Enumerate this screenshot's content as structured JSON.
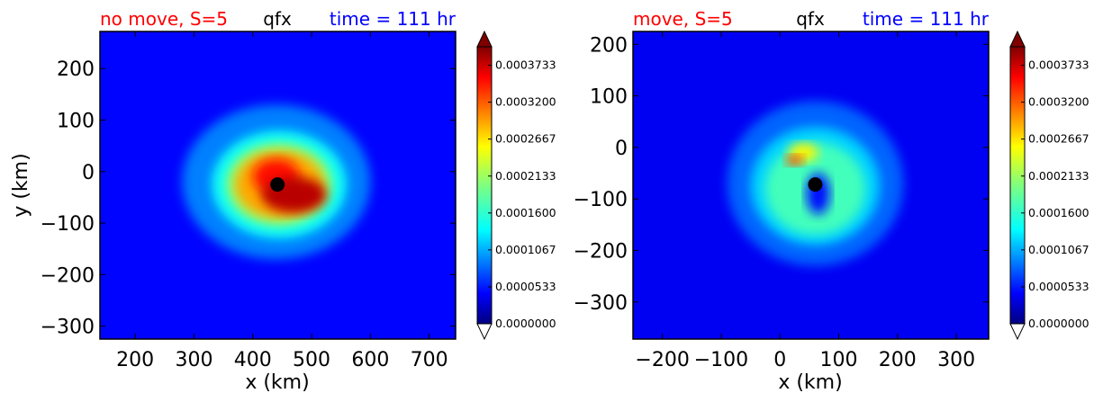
{
  "chart_data": [
    {
      "type": "heatmap",
      "title_left": "no move, S=5",
      "title_center": "qfx",
      "title_right": "time = 111 hr",
      "title_colors": {
        "left": "#ff0000",
        "center": "#000000",
        "right": "#0000ff"
      },
      "xlabel": "x (km)",
      "ylabel": "y (km)",
      "xlim": [
        140,
        745
      ],
      "ylim": [
        -325,
        272
      ],
      "x_ticks": [
        200,
        300,
        400,
        500,
        600,
        700
      ],
      "x_tick_labels": [
        "200",
        "300",
        "400",
        "500",
        "600",
        "700"
      ],
      "y_ticks": [
        200,
        100,
        0,
        -100,
        -200,
        -300
      ],
      "y_tick_labels": [
        "200",
        "100",
        "0",
        "−100",
        "−200",
        "−300"
      ],
      "center_marker": {
        "x": 442,
        "y": -25
      },
      "field": {
        "background_level": 4.5e-05,
        "blobs": [
          {
            "x": 440,
            "y": -20,
            "rx": 160,
            "ry": 150,
            "level": 9e-05
          },
          {
            "x": 445,
            "y": -25,
            "rx": 115,
            "ry": 105,
            "level": 0.00014
          },
          {
            "x": 445,
            "y": -25,
            "rx": 90,
            "ry": 80,
            "level": 0.00021
          },
          {
            "x": 445,
            "y": -25,
            "rx": 75,
            "ry": 65,
            "level": 0.00029
          },
          {
            "x": 440,
            "y": -10,
            "rx": 40,
            "ry": 35,
            "level": 0.00035
          },
          {
            "x": 470,
            "y": -45,
            "rx": 55,
            "ry": 35,
            "level": 0.00038
          }
        ]
      },
      "colorbar": {
        "min": 0.0,
        "max": 0.0004,
        "tick_values": [
          0.0,
          5.33e-05,
          0.0001067,
          0.00016,
          0.0002133,
          0.0002667,
          0.00032,
          0.0003733
        ],
        "tick_labels": [
          "0.0000000",
          "0.0000533",
          "0.0001067",
          "0.0001600",
          "0.0002133",
          "0.0002667",
          "0.0003200",
          "0.0003733"
        ],
        "extend": "both"
      }
    },
    {
      "type": "heatmap",
      "title_left": "move, S=5",
      "title_center": "qfx",
      "title_right": "time = 111 hr",
      "title_colors": {
        "left": "#ff0000",
        "center": "#000000",
        "right": "#0000ff"
      },
      "xlabel": "x (km)",
      "ylabel": "",
      "xlim": [
        -250,
        355
      ],
      "ylim": [
        -372,
        225
      ],
      "x_ticks": [
        -200,
        -100,
        0,
        100,
        200,
        300
      ],
      "x_tick_labels": [
        "−200",
        "−100",
        "0",
        "100",
        "200",
        "300"
      ],
      "y_ticks": [
        200,
        100,
        0,
        -100,
        -200,
        -300
      ],
      "y_tick_labels": [
        "200",
        "100",
        "0",
        "−100",
        "−200",
        "−300"
      ],
      "center_marker": {
        "x": 60,
        "y": -72
      },
      "field": {
        "background_level": 4e-05,
        "blobs": [
          {
            "x": 60,
            "y": -70,
            "rx": 150,
            "ry": 160,
            "level": 8e-05
          },
          {
            "x": 60,
            "y": -75,
            "rx": 110,
            "ry": 115,
            "level": 0.00012
          },
          {
            "x": 60,
            "y": -80,
            "rx": 85,
            "ry": 90,
            "level": 0.00017
          },
          {
            "x": 40,
            "y": -10,
            "rx": 25,
            "ry": 18,
            "level": 0.00026
          },
          {
            "x": 25,
            "y": -25,
            "rx": 15,
            "ry": 10,
            "level": 0.00033
          },
          {
            "x": 65,
            "y": -90,
            "rx": 20,
            "ry": 40,
            "level": 5e-05
          }
        ]
      },
      "colorbar": {
        "min": 0.0,
        "max": 0.0004,
        "tick_values": [
          0.0,
          5.33e-05,
          0.0001067,
          0.00016,
          0.0002133,
          0.0002667,
          0.00032,
          0.0003733
        ],
        "tick_labels": [
          "0.0000000",
          "0.0000533",
          "0.0001067",
          "0.0001600",
          "0.0002133",
          "0.0002667",
          "0.0003200",
          "0.0003733"
        ],
        "extend": "both"
      }
    }
  ]
}
